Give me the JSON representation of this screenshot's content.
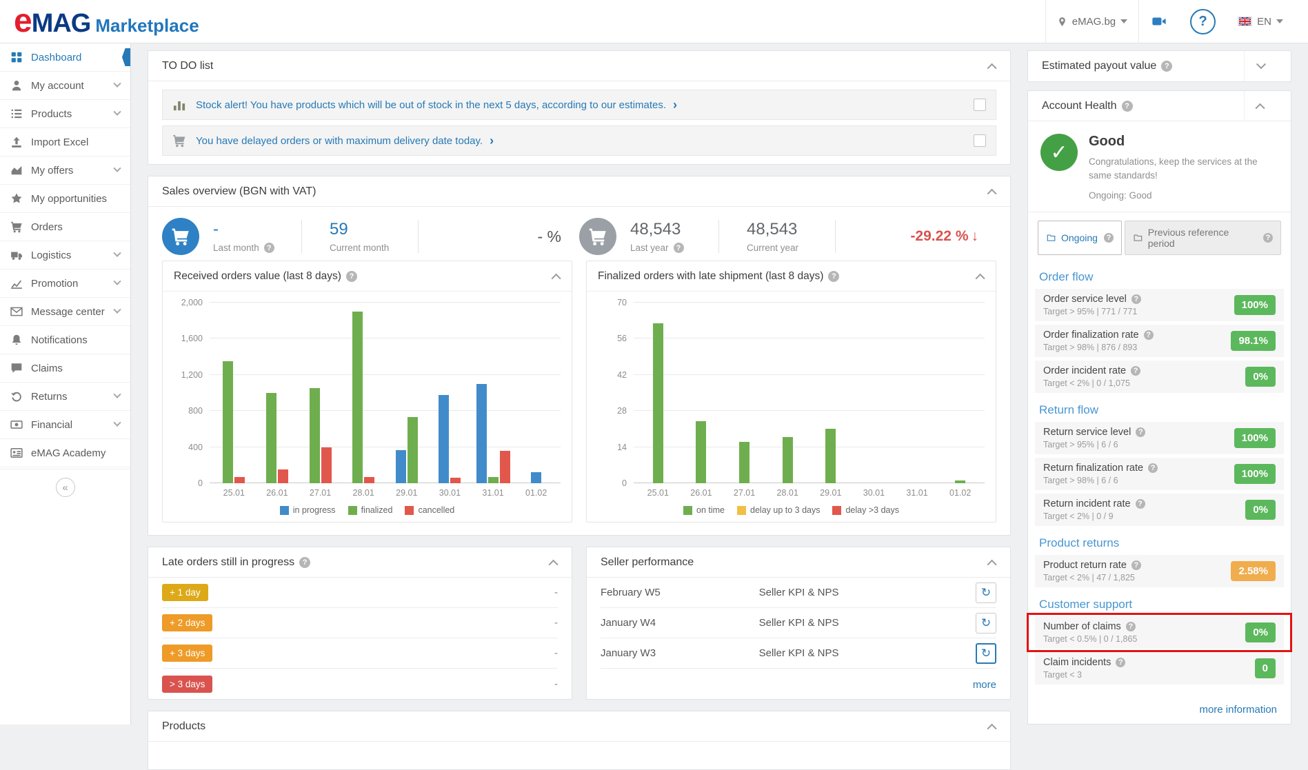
{
  "colors": {
    "accent_blue": "#2679b6",
    "success_green": "#5cb85c",
    "warning_orange": "#f0ad4e",
    "danger_red": "#d9534f",
    "health_green": "#44a044",
    "highlight_red": "#e31212",
    "chart_blue": "#428bca",
    "chart_green": "#6fae4e",
    "chart_red": "#e2574c",
    "chart_yellow": "#f0c045"
  },
  "header": {
    "logo_e": "e",
    "logo_mag": "MAG",
    "logo_marketplace": "Marketplace",
    "site_selector": "eMAG.bg",
    "language": "EN"
  },
  "sidebar": {
    "items": [
      {
        "label": "Dashboard",
        "icon": "dashboard",
        "active": true,
        "chevron": false
      },
      {
        "label": "My account",
        "icon": "user",
        "active": false,
        "chevron": true
      },
      {
        "label": "Products",
        "icon": "list",
        "active": false,
        "chevron": true
      },
      {
        "label": "Import Excel",
        "icon": "upload",
        "active": false,
        "chevron": false
      },
      {
        "label": "My offers",
        "icon": "area-chart",
        "active": false,
        "chevron": true
      },
      {
        "label": "My opportunities",
        "icon": "star",
        "active": false,
        "chevron": false
      },
      {
        "label": "Orders",
        "icon": "cart",
        "active": false,
        "chevron": false
      },
      {
        "label": "Logistics",
        "icon": "truck",
        "active": false,
        "chevron": true
      },
      {
        "label": "Promotion",
        "icon": "line-chart",
        "active": false,
        "chevron": true
      },
      {
        "label": "Message center",
        "icon": "envelope",
        "active": false,
        "chevron": true
      },
      {
        "label": "Notifications",
        "icon": "bell",
        "active": false,
        "chevron": false
      },
      {
        "label": "Claims",
        "icon": "comment",
        "active": false,
        "chevron": false
      },
      {
        "label": "Returns",
        "icon": "undo",
        "active": false,
        "chevron": true
      },
      {
        "label": "Financial",
        "icon": "money",
        "active": false,
        "chevron": true
      },
      {
        "label": "eMAG Academy",
        "icon": "card",
        "active": false,
        "chevron": false
      }
    ],
    "collapse_glyph": "«"
  },
  "todo": {
    "title": "TO DO list",
    "items": [
      {
        "icon": "bar-chart",
        "text": "Stock alert! You have products which will be out of stock in the next 5 days, according to our estimates.",
        "arrow": "›"
      },
      {
        "icon": "cart",
        "text": "You have delayed orders or with maximum delivery date today.",
        "arrow": "›"
      }
    ]
  },
  "sales": {
    "title": "Sales overview (BGN with VAT)",
    "orders": {
      "last_value": "-",
      "last_label": "Last month",
      "current_value": "59",
      "current_label": "Current month",
      "delta": "- %"
    },
    "revenue": {
      "last_value": "48,543",
      "last_label": "Last year",
      "current_value": "48,543",
      "current_label": "Current year",
      "delta": "-29.22 %",
      "delta_arrow": "↓"
    }
  },
  "chart_data": [
    {
      "type": "bar",
      "title": "Received orders value (last 8 days)",
      "categories": [
        "25.01",
        "26.01",
        "27.01",
        "28.01",
        "29.01",
        "30.01",
        "31.01",
        "01.02"
      ],
      "series": [
        {
          "name": "in progress",
          "color": "#428bca",
          "values": [
            0,
            0,
            0,
            0,
            370,
            980,
            1100,
            120
          ]
        },
        {
          "name": "finalized",
          "color": "#6fae4e",
          "values": [
            1350,
            1000,
            1050,
            1900,
            730,
            0,
            70,
            0
          ]
        },
        {
          "name": "cancelled",
          "color": "#e2574c",
          "values": [
            70,
            150,
            400,
            70,
            0,
            60,
            360,
            0
          ]
        }
      ],
      "ylim": [
        0,
        2000
      ],
      "yticks": [
        "0",
        "400",
        "800",
        "1,200",
        "1,600",
        "2,000"
      ],
      "grid": true,
      "legend_position": "bottom"
    },
    {
      "type": "bar",
      "title": "Finalized orders with late shipment (last 8 days)",
      "categories": [
        "25.01",
        "26.01",
        "27.01",
        "28.01",
        "29.01",
        "30.01",
        "31.01",
        "01.02"
      ],
      "series": [
        {
          "name": "on time",
          "color": "#6fae4e",
          "values": [
            62,
            24,
            16,
            18,
            21,
            0,
            0,
            1
          ]
        },
        {
          "name": "delay up to 3 days",
          "color": "#f0c045",
          "values": [
            0,
            0,
            0,
            0,
            0,
            0,
            0,
            0
          ]
        },
        {
          "name": "delay >3 days",
          "color": "#e2574c",
          "values": [
            0,
            0,
            0,
            0,
            0,
            0,
            0,
            0
          ]
        }
      ],
      "ylim": [
        0,
        70
      ],
      "yticks": [
        "0",
        "14",
        "28",
        "42",
        "56",
        "70"
      ],
      "grid": true,
      "legend_position": "bottom"
    }
  ],
  "late_orders": {
    "title": "Late orders still in progress",
    "rows": [
      {
        "badge": "+ 1 day",
        "color": "#dda918",
        "value": "-"
      },
      {
        "badge": "+ 2 days",
        "color": "#ee9b27",
        "value": "-"
      },
      {
        "badge": "+ 3 days",
        "color": "#ee9b27",
        "value": "-"
      },
      {
        "badge": "> 3 days",
        "color": "#d9534f",
        "value": "-"
      }
    ]
  },
  "seller_performance": {
    "title": "Seller performance",
    "rows": [
      {
        "week": "February W5",
        "link": "Seller KPI & NPS",
        "highlighted": false
      },
      {
        "week": "January W4",
        "link": "Seller KPI & NPS",
        "highlighted": false
      },
      {
        "week": "January W3",
        "link": "Seller KPI & NPS",
        "highlighted": true
      }
    ],
    "more_label": "more"
  },
  "products_panel": {
    "title": "Products"
  },
  "payout_panel": {
    "title": "Estimated payout value"
  },
  "account_health": {
    "title": "Account Health",
    "status": "Good",
    "status_message": "Congratulations, keep the services at the same standards!",
    "ongoing_label": "Ongoing: Good",
    "tabs": [
      {
        "label": "Ongoing",
        "active": true
      },
      {
        "label": "Previous reference period",
        "active": false
      }
    ],
    "sections": [
      {
        "heading": "Order flow",
        "metrics": [
          {
            "name": "Order service level",
            "target": "Target > 95% | 771 / 771",
            "value": "100%",
            "level": "good",
            "highlighted": false
          },
          {
            "name": "Order finalization rate",
            "target": "Target > 98% | 876 / 893",
            "value": "98.1%",
            "level": "good",
            "highlighted": false
          },
          {
            "name": "Order incident rate",
            "target": "Target < 2% | 0 / 1,075",
            "value": "0%",
            "level": "good",
            "highlighted": false
          }
        ]
      },
      {
        "heading": "Return flow",
        "metrics": [
          {
            "name": "Return service level",
            "target": "Target > 95% | 6 / 6",
            "value": "100%",
            "level": "good",
            "highlighted": false
          },
          {
            "name": "Return finalization rate",
            "target": "Target > 98% | 6 / 6",
            "value": "100%",
            "level": "good",
            "highlighted": false
          },
          {
            "name": "Return incident rate",
            "target": "Target < 2% | 0 / 9",
            "value": "0%",
            "level": "good",
            "highlighted": false
          }
        ]
      },
      {
        "heading": "Product returns",
        "metrics": [
          {
            "name": "Product return rate",
            "target": "Target < 2% | 47 / 1,825",
            "value": "2.58%",
            "level": "warning",
            "highlighted": false
          }
        ]
      },
      {
        "heading": "Customer support",
        "metrics": [
          {
            "name": "Number of claims",
            "target": "Target < 0.5% | 0 / 1,865",
            "value": "0%",
            "level": "good",
            "highlighted": true
          },
          {
            "name": "Claim incidents",
            "target": "Target < 3",
            "value": "0",
            "level": "good",
            "highlighted": false
          }
        ]
      }
    ],
    "more_label": "more information"
  }
}
